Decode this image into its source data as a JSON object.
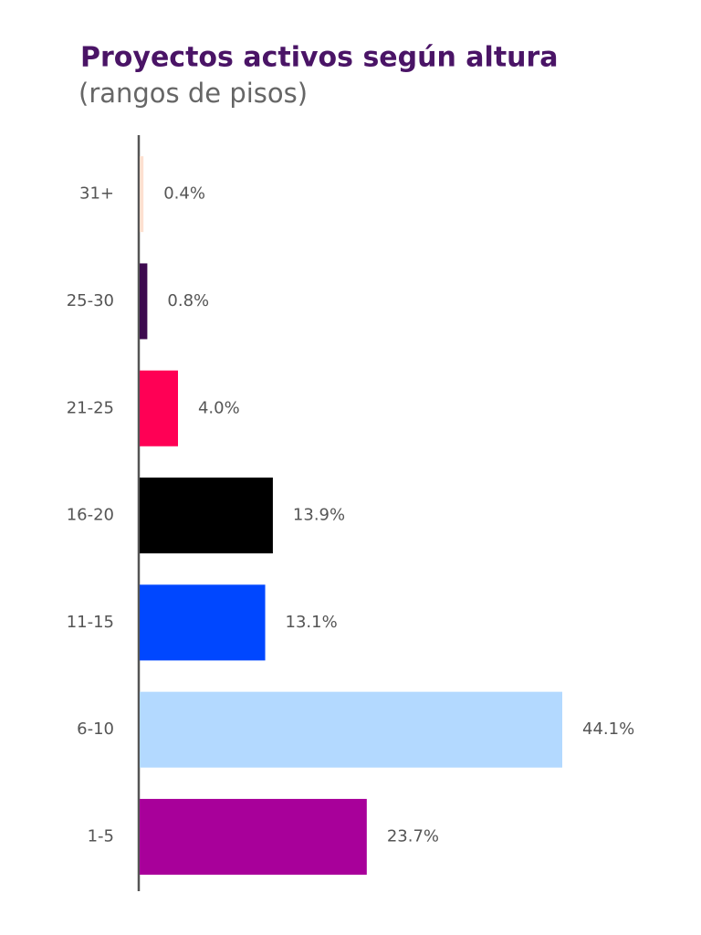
{
  "chart_data": {
    "type": "bar",
    "orientation": "horizontal",
    "title": "Proyectos activos según altura",
    "subtitle": "(rangos de pisos)",
    "categories": [
      "31+",
      "25-30",
      "21-25",
      "16-20",
      "11-15",
      "6-10",
      "1-5"
    ],
    "values": [
      0.4,
      0.8,
      4.0,
      13.9,
      13.1,
      44.1,
      23.7
    ],
    "value_labels": [
      "0.4%",
      "0.8%",
      "4.0%",
      "13.9%",
      "13.1%",
      "44.1%",
      "23.7%"
    ],
    "colors": [
      "#fde0d0",
      "#3d0a4f",
      "#ff0055",
      "#000000",
      "#0047ff",
      "#b3d9ff",
      "#a8009a"
    ]
  }
}
